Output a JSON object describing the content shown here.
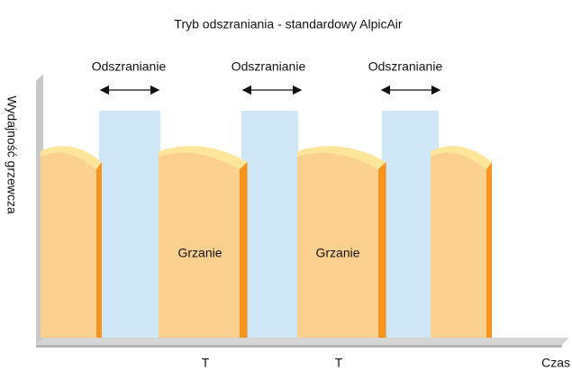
{
  "title": "Tryb odszraniania - standardowy AlpicAir",
  "y_axis_label": "Wydajność grzewcza",
  "x_axis_label": "Czas",
  "defrost_labels": [
    "Odszranianie",
    "Odszranianie",
    "Odszranianie"
  ],
  "heating_labels": [
    "Grzanie",
    "Grzanie"
  ],
  "period_labels": [
    "T",
    "T"
  ]
}
